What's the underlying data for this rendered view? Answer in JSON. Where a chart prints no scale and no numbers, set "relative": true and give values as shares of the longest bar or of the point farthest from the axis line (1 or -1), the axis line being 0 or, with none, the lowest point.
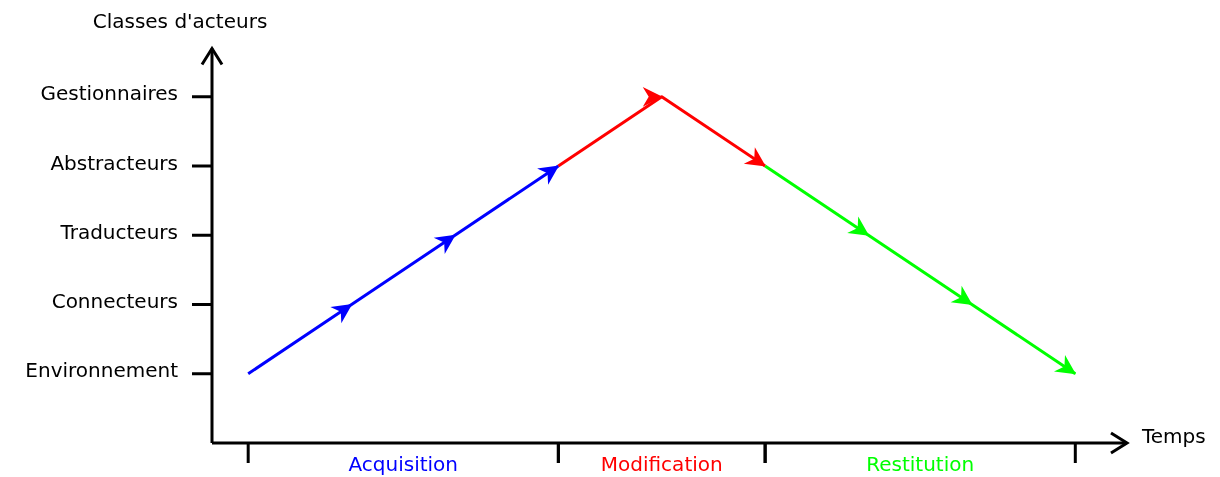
{
  "chart_data": {
    "type": "line",
    "ylabel": "Classes d'acteurs",
    "xlabel": "Temps",
    "relative": true,
    "categories": [
      null,
      null,
      null,
      null,
      null,
      null,
      null,
      null,
      null
    ],
    "series": [
      {
        "name": "Acquisition",
        "color": "#0000ff",
        "values": [
          0.2,
          0.4,
          0.6,
          0.8,
          null,
          null,
          null,
          null,
          null
        ]
      },
      {
        "name": "Modification",
        "color": "#ff0000",
        "values": [
          null,
          null,
          null,
          0.8,
          1,
          0.8,
          null,
          null,
          null
        ]
      },
      {
        "name": "Restitution",
        "color": "#00ff00",
        "values": [
          null,
          null,
          null,
          null,
          null,
          0.8,
          0.6,
          0.4,
          0.2
        ]
      }
    ],
    "annotations": [
      "Environnement",
      "Connecteurs",
      "Traducteurs",
      "Abstracteurs",
      "Gestionnaires"
    ]
  }
}
